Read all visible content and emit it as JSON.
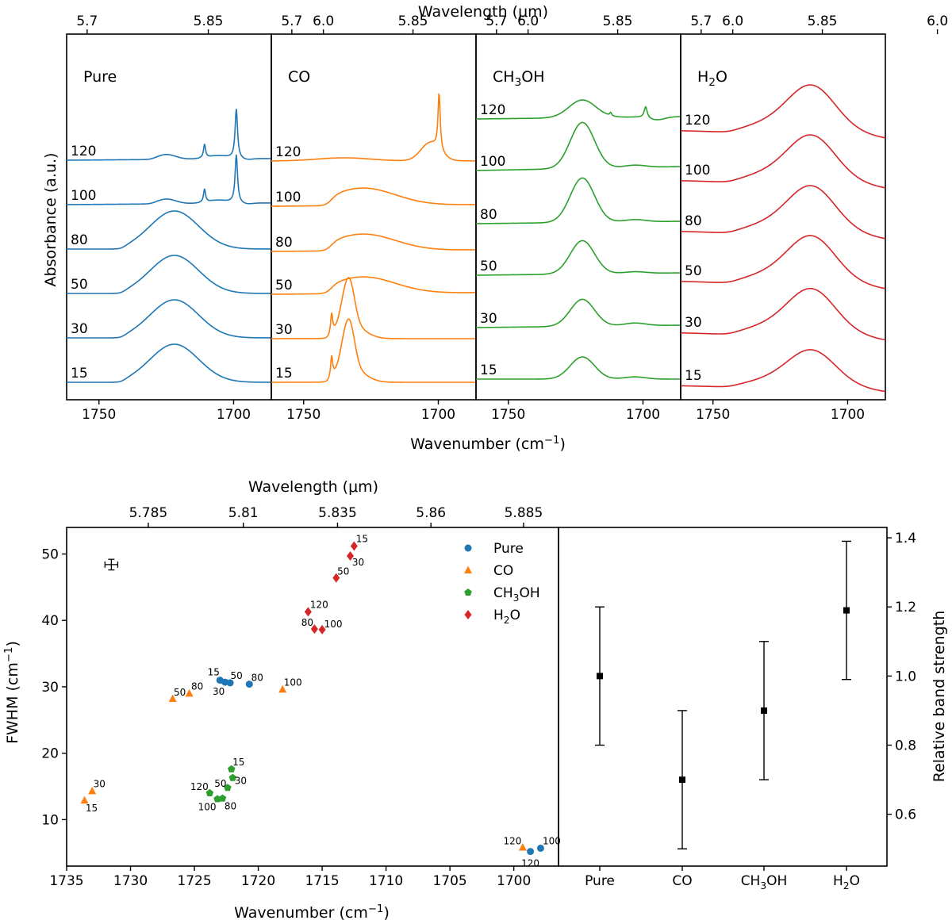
{
  "colors": {
    "pure": "#1f77b4",
    "co": "#ff7f0e",
    "ch3oh": "#2ca02c",
    "h2o": "#d62728"
  },
  "chart_data": [
    {
      "type": "line",
      "title": "",
      "top_xlabel": "Wavelength (μm)",
      "xlabel": "Wavenumber (cm⁻¹)",
      "ylabel": "Absorbance (a.u.)",
      "xlim": [
        1762,
        1686
      ],
      "wavenumber_ticks": [
        "1750",
        "1700"
      ],
      "wavelength_ticks": [
        "5.7",
        "5.85",
        "6.0"
      ],
      "temperatures_K": [
        "15",
        "30",
        "50",
        "80",
        "100",
        "120"
      ],
      "panels": [
        {
          "label": "Pure",
          "sub": "",
          "label_tail": "",
          "color_key": "pure"
        },
        {
          "label": "CO",
          "sub": "",
          "label_tail": "",
          "color_key": "co"
        },
        {
          "label": "CH",
          "sub": "3",
          "label_tail": "OH",
          "color_key": "ch3oh"
        },
        {
          "label": "H",
          "sub": "2",
          "label_tail": "O",
          "color_key": "h2o"
        }
      ]
    },
    {
      "type": "scatter",
      "top_xlabel": "Wavelength (μm)",
      "xlabel": "Wavenumber (cm⁻¹)",
      "ylabel": "FWHM (cm⁻¹)",
      "xlim": [
        1735,
        1696.5
      ],
      "ylim": [
        3,
        54
      ],
      "x_ticks": [
        "1735",
        "1730",
        "1725",
        "1720",
        "1715",
        "1710",
        "1705",
        "1700"
      ],
      "y_ticks": [
        "10",
        "20",
        "30",
        "40",
        "50"
      ],
      "wavelength_ticks": [
        "5.785",
        "5.81",
        "5.835",
        "5.86",
        "5.885"
      ],
      "legend": [
        {
          "name": "Pure",
          "sub": "",
          "tail": "",
          "color_key": "pure",
          "marker": "circle"
        },
        {
          "name": "CO",
          "sub": "",
          "tail": "",
          "color_key": "co",
          "marker": "triangle"
        },
        {
          "name": "CH",
          "sub": "3",
          "tail": "OH",
          "color_key": "ch3oh",
          "marker": "pentagon"
        },
        {
          "name": "H",
          "sub": "2",
          "tail": "O",
          "color_key": "h2o",
          "marker": "diamond"
        }
      ],
      "error_bar_example": {
        "x": 1731.5,
        "y": 48.4,
        "xerr": 0.5,
        "yerr": 0.8
      },
      "series": [
        {
          "name": "Pure",
          "color_key": "pure",
          "marker": "circle",
          "points": [
            {
              "x": 1723.0,
              "y": 31.0,
              "label": "15"
            },
            {
              "x": 1722.6,
              "y": 30.7,
              "label": "30"
            },
            {
              "x": 1722.2,
              "y": 30.6,
              "label": "50"
            },
            {
              "x": 1720.7,
              "y": 30.4,
              "label": "80"
            },
            {
              "x": 1697.9,
              "y": 5.7,
              "label": "100"
            },
            {
              "x": 1698.7,
              "y": 5.2,
              "label": "120"
            }
          ]
        },
        {
          "name": "CO",
          "color_key": "co",
          "marker": "triangle",
          "points": [
            {
              "x": 1733.6,
              "y": 12.9,
              "label": "15"
            },
            {
              "x": 1733.0,
              "y": 14.3,
              "label": "30"
            },
            {
              "x": 1726.7,
              "y": 28.2,
              "label": "50"
            },
            {
              "x": 1725.4,
              "y": 29.0,
              "label": "80"
            },
            {
              "x": 1718.1,
              "y": 29.6,
              "label": "100"
            },
            {
              "x": 1699.3,
              "y": 5.8,
              "label": "120"
            }
          ]
        },
        {
          "name": "CH3OH",
          "color_key": "ch3oh",
          "marker": "pentagon",
          "points": [
            {
              "x": 1722.1,
              "y": 17.6,
              "label": "15"
            },
            {
              "x": 1722.0,
              "y": 16.3,
              "label": "30"
            },
            {
              "x": 1722.4,
              "y": 14.8,
              "label": "50"
            },
            {
              "x": 1722.8,
              "y": 13.2,
              "label": "80"
            },
            {
              "x": 1723.2,
              "y": 13.1,
              "label": "100"
            },
            {
              "x": 1723.8,
              "y": 14.0,
              "label": "120"
            }
          ]
        },
        {
          "name": "H2O",
          "color_key": "h2o",
          "marker": "diamond",
          "points": [
            {
              "x": 1712.5,
              "y": 51.2,
              "label": "15"
            },
            {
              "x": 1712.8,
              "y": 49.7,
              "label": "30"
            },
            {
              "x": 1713.9,
              "y": 46.4,
              "label": "50"
            },
            {
              "x": 1715.6,
              "y": 38.7,
              "label": "80"
            },
            {
              "x": 1715.0,
              "y": 38.6,
              "label": "100"
            },
            {
              "x": 1716.1,
              "y": 41.3,
              "label": "120"
            }
          ]
        }
      ]
    },
    {
      "type": "scatter",
      "ylabel": "Relative band strength",
      "ylim": [
        0.45,
        1.43
      ],
      "y_ticks": [
        "0.6",
        "0.8",
        "1.0",
        "1.2",
        "1.4"
      ],
      "categories": [
        {
          "name": "Pure",
          "sub": "",
          "tail": ""
        },
        {
          "name": "CO",
          "sub": "",
          "tail": ""
        },
        {
          "name": "CH",
          "sub": "3",
          "tail": "OH"
        },
        {
          "name": "H",
          "sub": "2",
          "tail": "O"
        }
      ],
      "values": [
        1.0,
        0.7,
        0.9,
        1.19
      ],
      "errors": [
        0.2,
        0.2,
        0.2,
        0.2
      ]
    }
  ]
}
